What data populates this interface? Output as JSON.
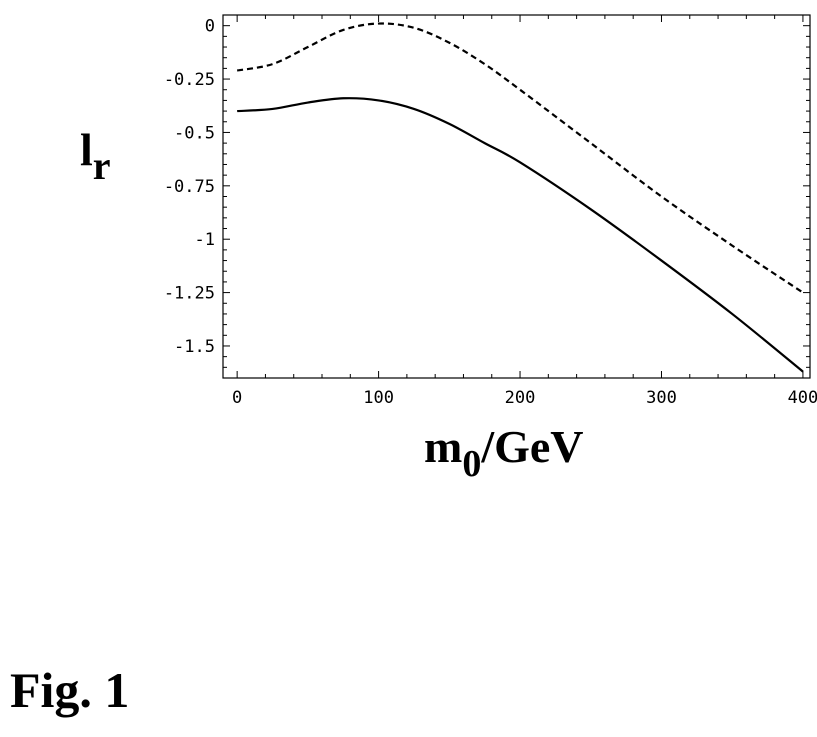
{
  "chart_data": {
    "type": "line",
    "title": "",
    "xlabel": {
      "main": "m",
      "sub": "0",
      "rest": "/GeV"
    },
    "ylabel": {
      "main": "l",
      "sub": "r"
    },
    "xlim": [
      -10,
      405
    ],
    "ylim": [
      -1.65,
      0.05
    ],
    "x_ticks": [
      0,
      100,
      200,
      300,
      400
    ],
    "x_tick_labels": [
      "0",
      "100",
      "200",
      "300",
      "400"
    ],
    "y_ticks": [
      0,
      -0.25,
      -0.5,
      -0.75,
      -1,
      -1.25,
      -1.5
    ],
    "y_tick_labels": [
      "0",
      "-0.25",
      "-0.5",
      "-0.75",
      "-1",
      "-1.25",
      "-1.5"
    ],
    "grid": false,
    "legend": "none",
    "series": [
      {
        "style": "dashed",
        "x": [
          0,
          25,
          50,
          75,
          100,
          125,
          150,
          175,
          200,
          250,
          300,
          350,
          400
        ],
        "y": [
          -0.21,
          -0.18,
          -0.1,
          -0.02,
          0.01,
          -0.01,
          -0.08,
          -0.18,
          -0.3,
          -0.55,
          -0.8,
          -1.03,
          -1.25
        ]
      },
      {
        "style": "solid",
        "x": [
          0,
          25,
          50,
          75,
          100,
          125,
          150,
          175,
          200,
          250,
          300,
          350,
          400
        ],
        "y": [
          -0.4,
          -0.39,
          -0.36,
          -0.34,
          -0.35,
          -0.39,
          -0.46,
          -0.55,
          -0.64,
          -0.86,
          -1.1,
          -1.35,
          -1.62
        ]
      }
    ]
  },
  "caption": "Fig. 1"
}
